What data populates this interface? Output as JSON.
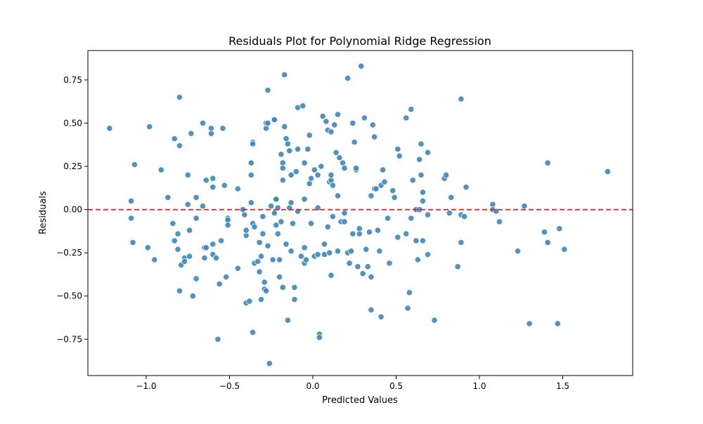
{
  "chart_data": {
    "type": "scatter",
    "title": "Residuals Plot for Polynomial Ridge Regression",
    "xlabel": "Predicted Values",
    "ylabel": "Residuals",
    "xlim": [
      -1.35,
      1.92
    ],
    "ylim": [
      -0.96,
      0.92
    ],
    "x_ticks": [
      -1.0,
      -0.5,
      0.0,
      0.5,
      1.0,
      1.5
    ],
    "x_tick_labels": [
      "−1.0",
      "−0.5",
      "0.0",
      "0.5",
      "1.0",
      "1.5"
    ],
    "y_ticks": [
      -0.75,
      -0.5,
      -0.25,
      0.0,
      0.25,
      0.5,
      0.75
    ],
    "y_tick_labels": [
      "−0.75",
      "−0.50",
      "−0.25",
      "0.00",
      "0.25",
      "0.50",
      "0.75"
    ],
    "grid": false,
    "reference_line": {
      "y": 0.0,
      "style": "dashed",
      "color": "#e31a1c"
    },
    "point_color": "#3a87c0",
    "points": [
      [
        -1.22,
        0.47
      ],
      [
        -1.09,
        0.05
      ],
      [
        -1.09,
        -0.05
      ],
      [
        -1.07,
        0.26
      ],
      [
        -1.08,
        -0.19
      ],
      [
        -0.99,
        -0.22
      ],
      [
        -0.98,
        0.48
      ],
      [
        -0.95,
        -0.29
      ],
      [
        -0.91,
        0.23
      ],
      [
        -0.87,
        0.07
      ],
      [
        -0.83,
        0.41
      ],
      [
        -0.84,
        -0.08
      ],
      [
        -0.83,
        -0.18
      ],
      [
        -0.81,
        -0.23
      ],
      [
        -0.81,
        -0.14
      ],
      [
        -0.8,
        0.65
      ],
      [
        -0.8,
        0.37
      ],
      [
        -0.79,
        -0.32
      ],
      [
        -0.77,
        -0.28
      ],
      [
        -0.77,
        -0.3
      ],
      [
        -0.75,
        0.2
      ],
      [
        -0.75,
        0.03
      ],
      [
        -0.74,
        -0.12
      ],
      [
        -0.74,
        -0.27
      ],
      [
        -0.73,
        0.44
      ],
      [
        -0.72,
        -0.5
      ],
      [
        -0.7,
        0.07
      ],
      [
        -0.7,
        -0.05
      ],
      [
        -0.7,
        -0.4
      ],
      [
        -0.8,
        -0.47
      ],
      [
        -0.66,
        0.5
      ],
      [
        -0.66,
        0.02
      ],
      [
        -0.65,
        -0.22
      ],
      [
        -0.64,
        -0.22
      ],
      [
        -0.64,
        0.17
      ],
      [
        -0.65,
        -0.28
      ],
      [
        -0.61,
        0.47
      ],
      [
        -0.61,
        0.44
      ],
      [
        -0.6,
        0.13
      ],
      [
        -0.6,
        0.18
      ],
      [
        -0.6,
        -0.2
      ],
      [
        -0.6,
        -0.26
      ],
      [
        -0.58,
        -0.28
      ],
      [
        -0.57,
        -0.75
      ],
      [
        -0.56,
        -0.43
      ],
      [
        -0.55,
        -0.18
      ],
      [
        -0.54,
        0.47
      ],
      [
        -0.53,
        0.14
      ],
      [
        -0.52,
        -0.39
      ],
      [
        -0.51,
        -0.05
      ],
      [
        -0.51,
        -0.06
      ],
      [
        -0.51,
        -0.09
      ],
      [
        -0.45,
        0.12
      ],
      [
        -0.45,
        -0.34
      ],
      [
        -0.42,
        0.0
      ],
      [
        -0.41,
        -0.03
      ],
      [
        -0.4,
        -0.15
      ],
      [
        -0.4,
        -0.12
      ],
      [
        -0.4,
        -0.54
      ],
      [
        -0.38,
        -0.53
      ],
      [
        -0.37,
        0.04
      ],
      [
        -0.37,
        0.2
      ],
      [
        -0.37,
        0.27
      ],
      [
        -0.36,
        0.39
      ],
      [
        -0.36,
        0.38
      ],
      [
        -0.36,
        -0.08
      ],
      [
        -0.36,
        -0.71
      ],
      [
        -0.35,
        -0.1
      ],
      [
        -0.35,
        -0.31
      ],
      [
        -0.33,
        -0.3
      ],
      [
        -0.32,
        -0.36
      ],
      [
        -0.32,
        -0.19
      ],
      [
        -0.31,
        -0.27
      ],
      [
        -0.31,
        -0.52
      ],
      [
        -0.3,
        -0.14
      ],
      [
        -0.3,
        -0.04
      ],
      [
        -0.29,
        -0.42
      ],
      [
        -0.29,
        -0.46
      ],
      [
        -0.28,
        -0.47
      ],
      [
        -0.28,
        0.47
      ],
      [
        -0.28,
        0.5
      ],
      [
        -0.27,
        0.69
      ],
      [
        -0.27,
        0.5
      ],
      [
        -0.27,
        -0.21
      ],
      [
        -0.26,
        -0.89
      ],
      [
        -0.25,
        0.02
      ],
      [
        -0.24,
        -0.29
      ],
      [
        -0.23,
        -0.02
      ],
      [
        -0.23,
        0.52
      ],
      [
        -0.23,
        0.52
      ],
      [
        -0.22,
        0.06
      ],
      [
        -0.22,
        0.06
      ],
      [
        -0.22,
        -0.09
      ],
      [
        -0.21,
        0.01
      ],
      [
        -0.21,
        -0.14
      ],
      [
        -0.2,
        -0.29
      ],
      [
        -0.2,
        -0.39
      ],
      [
        -0.19,
        -0.07
      ],
      [
        -0.19,
        0.32
      ],
      [
        -0.18,
        0.27
      ],
      [
        -0.18,
        0.24
      ],
      [
        -0.18,
        0.17
      ],
      [
        -0.18,
        -0.45
      ],
      [
        -0.17,
        0.78
      ],
      [
        -0.17,
        0.48
      ],
      [
        -0.16,
        0.41
      ],
      [
        -0.16,
        -0.2
      ],
      [
        -0.15,
        -0.64
      ],
      [
        -0.15,
        0.38
      ],
      [
        -0.14,
        0.34
      ],
      [
        -0.14,
        0.01
      ],
      [
        -0.13,
        0.04
      ],
      [
        -0.13,
        0.2
      ],
      [
        -0.13,
        -0.24
      ],
      [
        -0.12,
        -0.08
      ],
      [
        -0.11,
        -0.45
      ],
      [
        -0.11,
        -0.52
      ],
      [
        -0.1,
        0.22
      ],
      [
        -0.09,
        0.59
      ],
      [
        -0.09,
        0.35
      ],
      [
        -0.09,
        -0.01
      ],
      [
        -0.07,
        -0.27
      ],
      [
        -0.06,
        0.6
      ],
      [
        -0.05,
        0.06
      ],
      [
        -0.05,
        0.27
      ],
      [
        -0.05,
        -0.22
      ],
      [
        -0.05,
        -0.31
      ],
      [
        -0.04,
        -0.29
      ],
      [
        -0.03,
        0.35
      ],
      [
        -0.02,
        0.15
      ],
      [
        -0.02,
        0.43
      ],
      [
        -0.01,
        0.18
      ],
      [
        -0.01,
        -0.08
      ],
      [
        0.01,
        -0.27
      ],
      [
        0.01,
        0.23
      ],
      [
        0.03,
        0.01
      ],
      [
        0.03,
        0.2
      ],
      [
        0.03,
        -0.26
      ],
      [
        0.04,
        -0.72
      ],
      [
        0.04,
        -0.74
      ],
      [
        0.05,
        0.25
      ],
      [
        0.06,
        0.54
      ],
      [
        0.07,
        -0.2
      ],
      [
        0.07,
        -0.26
      ],
      [
        0.08,
        0.51
      ],
      [
        0.09,
        0.46
      ],
      [
        0.09,
        -0.1
      ],
      [
        0.1,
        0.16
      ],
      [
        0.1,
        -0.25
      ],
      [
        0.11,
        0.17
      ],
      [
        0.11,
        -0.38
      ],
      [
        0.11,
        0.45
      ],
      [
        0.11,
        0.2
      ],
      [
        0.12,
        -0.04
      ],
      [
        0.12,
        0.14
      ],
      [
        0.13,
        0.49
      ],
      [
        0.14,
        0.33
      ],
      [
        0.15,
        -0.24
      ],
      [
        0.15,
        0.08
      ],
      [
        0.15,
        0.55
      ],
      [
        0.16,
        0.3
      ],
      [
        0.17,
        -0.07
      ],
      [
        0.18,
        0.27
      ],
      [
        0.19,
        -0.07
      ],
      [
        0.19,
        -0.02
      ],
      [
        0.19,
        0.24
      ],
      [
        0.21,
        -0.25
      ],
      [
        0.21,
        0.76
      ],
      [
        0.22,
        -0.31
      ],
      [
        0.23,
        -0.24
      ],
      [
        0.24,
        0.5
      ],
      [
        0.24,
        -0.14
      ],
      [
        0.25,
        0.39
      ],
      [
        0.26,
        0.23
      ],
      [
        0.26,
        0.24
      ],
      [
        0.27,
        -0.33
      ],
      [
        0.28,
        -0.14
      ],
      [
        0.28,
        -0.11
      ],
      [
        0.29,
        0.83
      ],
      [
        0.3,
        -0.37
      ],
      [
        0.31,
        0.53
      ],
      [
        0.32,
        -0.23
      ],
      [
        0.33,
        -0.33
      ],
      [
        0.34,
        -0.13
      ],
      [
        0.35,
        -0.39
      ],
      [
        0.35,
        0.08
      ],
      [
        0.35,
        -0.58
      ],
      [
        0.36,
        0.49
      ],
      [
        0.37,
        0.42
      ],
      [
        0.37,
        0.12
      ],
      [
        0.38,
        0.12
      ],
      [
        0.39,
        -0.12
      ],
      [
        0.4,
        -0.24
      ],
      [
        0.41,
        -0.62
      ],
      [
        0.41,
        0.14
      ],
      [
        0.42,
        0.23
      ],
      [
        0.43,
        0.16
      ],
      [
        0.45,
        -0.05
      ],
      [
        0.46,
        -0.31
      ],
      [
        0.48,
        0.11
      ],
      [
        0.49,
        0.07
      ],
      [
        0.51,
        0.35
      ],
      [
        0.51,
        -0.16
      ],
      [
        0.52,
        0.31
      ],
      [
        0.56,
        -0.14
      ],
      [
        0.56,
        0.53
      ],
      [
        0.57,
        -0.57
      ],
      [
        0.58,
        -0.48
      ],
      [
        0.59,
        -0.05
      ],
      [
        0.59,
        0.58
      ],
      [
        0.6,
        0.17
      ],
      [
        0.62,
        -0.18
      ],
      [
        0.62,
        0.0
      ],
      [
        0.63,
        -0.29
      ],
      [
        0.64,
        0.0
      ],
      [
        0.64,
        0.29
      ],
      [
        0.65,
        0.38
      ],
      [
        0.65,
        0.2
      ],
      [
        0.66,
        0.1
      ],
      [
        0.66,
        0.05
      ],
      [
        0.66,
        -0.18
      ],
      [
        0.69,
        0.33
      ],
      [
        0.69,
        -0.03
      ],
      [
        0.69,
        -0.26
      ],
      [
        0.73,
        -0.64
      ],
      [
        0.79,
        0.18
      ],
      [
        0.8,
        0.2
      ],
      [
        0.82,
        -0.02
      ],
      [
        0.83,
        0.07
      ],
      [
        0.87,
        -0.33
      ],
      [
        0.89,
        -0.19
      ],
      [
        0.89,
        0.64
      ],
      [
        0.89,
        -0.03
      ],
      [
        0.91,
        -0.04
      ],
      [
        0.92,
        0.13
      ],
      [
        1.08,
        0.03
      ],
      [
        1.08,
        0.0
      ],
      [
        1.1,
        -0.01
      ],
      [
        1.12,
        -0.07
      ],
      [
        1.23,
        -0.24
      ],
      [
        1.27,
        0.02
      ],
      [
        1.3,
        -0.66
      ],
      [
        1.39,
        -0.13
      ],
      [
        1.41,
        0.27
      ],
      [
        1.41,
        -0.19
      ],
      [
        1.47,
        -0.66
      ],
      [
        1.48,
        -0.11
      ],
      [
        1.51,
        -0.23
      ],
      [
        1.77,
        0.22
      ]
    ]
  }
}
